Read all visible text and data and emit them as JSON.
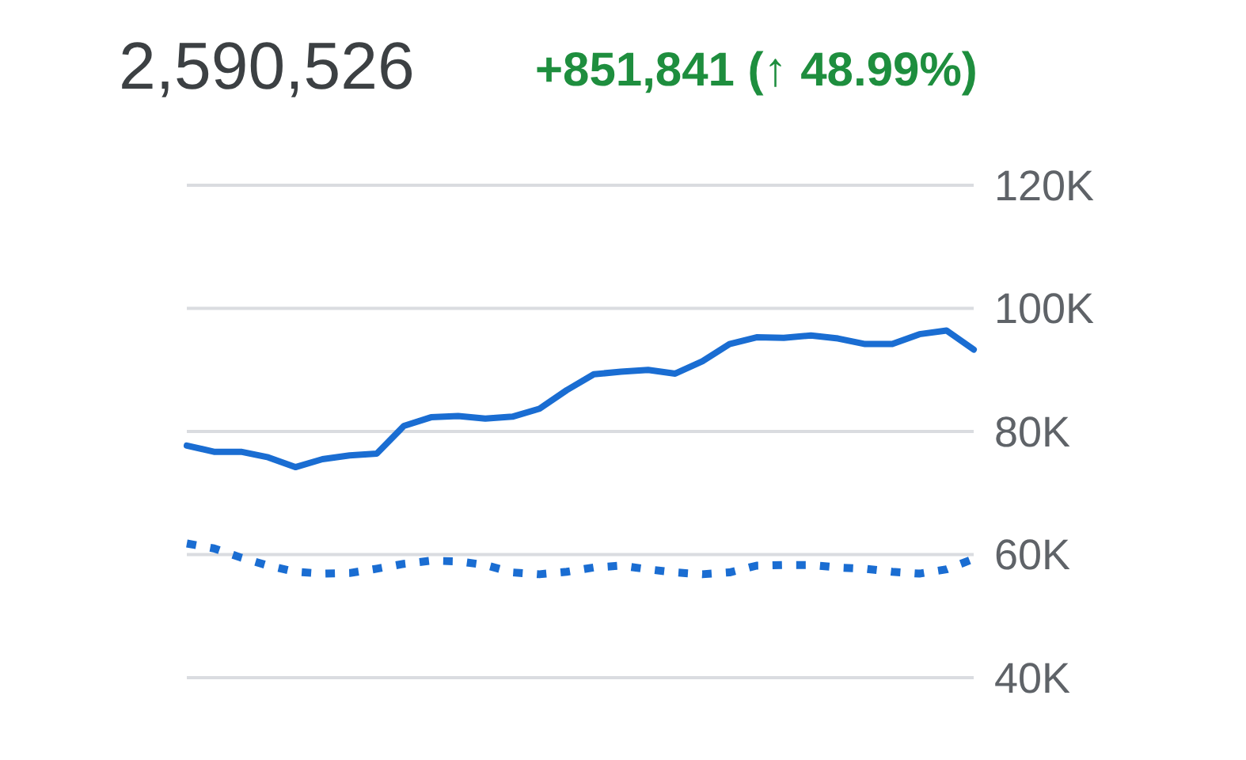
{
  "chart_data": {
    "type": "line",
    "title": "2,590,526",
    "subtitle": "+851,841 (↑ 48.99%)",
    "categories": [
      null,
      null,
      null,
      null,
      null,
      null,
      null,
      null,
      null,
      null,
      null,
      null,
      null,
      null,
      null,
      null,
      null,
      null,
      null,
      null,
      null,
      null,
      null,
      null,
      null,
      null,
      null,
      null,
      null,
      null
    ],
    "series": [
      {
        "color": "#1a6dd2",
        "line_style": "solid",
        "values": [
          77700,
          76700,
          76700,
          75800,
          74200,
          75500,
          76100,
          76400,
          80900,
          82300,
          82500,
          82100,
          82400,
          83700,
          86700,
          89300,
          89700,
          90000,
          89400,
          91400,
          94200,
          95300,
          95200,
          95600,
          95100,
          94200,
          94200,
          95800,
          96400,
          93300
        ]
      },
      {
        "color": "#1a6dd2",
        "line_style": "dotted",
        "values": [
          61800,
          61000,
          59500,
          58200,
          57200,
          56900,
          57000,
          57700,
          58500,
          59000,
          58900,
          58300,
          57100,
          56800,
          57200,
          57900,
          58200,
          57600,
          57100,
          56800,
          57100,
          58200,
          58300,
          58300,
          57900,
          57700,
          57200,
          56900,
          57600,
          59300
        ]
      }
    ],
    "ylim": [
      40000,
      120000
    ],
    "yticks": [
      {
        "value": 40000,
        "label": "40K"
      },
      {
        "value": 60000,
        "label": "60K"
      },
      {
        "value": 80000,
        "label": "80K"
      },
      {
        "value": 100000,
        "label": "100K"
      },
      {
        "value": 120000,
        "label": "120K"
      }
    ],
    "grid": "y"
  }
}
